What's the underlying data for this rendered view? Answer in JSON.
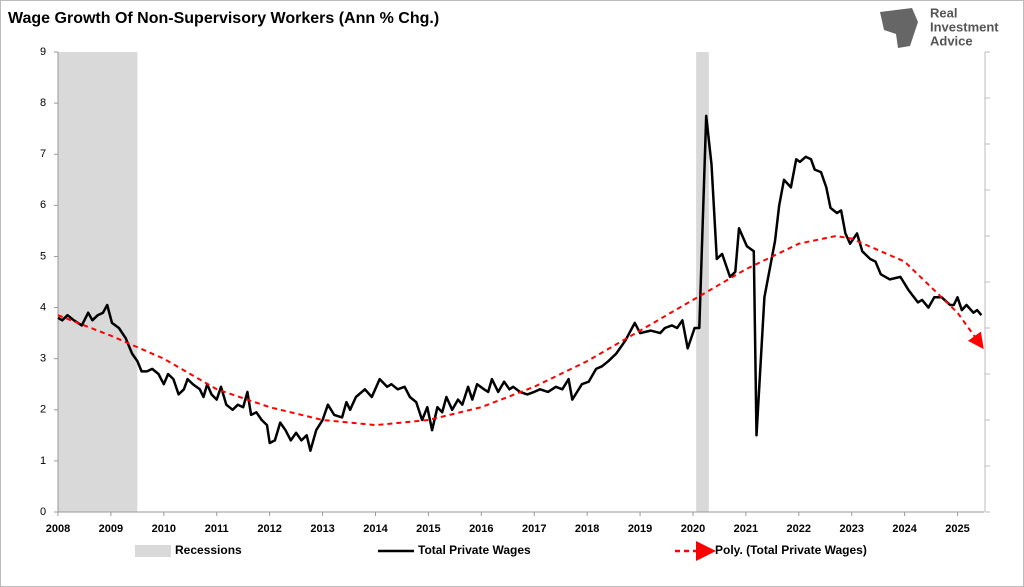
{
  "chart_data": {
    "type": "line",
    "title": "Wage Growth Of Non-Supervisory Workers (Ann % Chg.)",
    "logo": {
      "line1": "Real",
      "line2": "Investment",
      "line3": "Advice"
    },
    "xlim": [
      2008,
      2025.5
    ],
    "xticks": [
      2008,
      2009,
      2010,
      2011,
      2012,
      2013,
      2014,
      2015,
      2016,
      2017,
      2018,
      2019,
      2020,
      2021,
      2022,
      2023,
      2024,
      2025
    ],
    "ylim": [
      0,
      9
    ],
    "yticks": [
      0,
      1,
      2,
      3,
      4,
      5,
      6,
      7,
      8,
      9
    ],
    "series": [
      {
        "name": "Recessions",
        "kind": "band",
        "color": "#d9d9d9",
        "ranges": [
          [
            2008.0,
            2009.5
          ],
          [
            2020.06,
            2020.3
          ]
        ]
      },
      {
        "name": "Total Private Wages",
        "kind": "line",
        "color": "#000000",
        "x": [
          2008.0,
          2008.08,
          2008.18,
          2008.3,
          2008.45,
          2008.57,
          2008.65,
          2008.75,
          2008.85,
          2008.93,
          2009.02,
          2009.15,
          2009.28,
          2009.4,
          2009.5,
          2009.58,
          2009.68,
          2009.78,
          2009.9,
          2010.0,
          2010.08,
          2010.18,
          2010.28,
          2010.38,
          2010.45,
          2010.55,
          2010.68,
          2010.75,
          2010.82,
          2010.9,
          2011.0,
          2011.08,
          2011.18,
          2011.3,
          2011.4,
          2011.5,
          2011.58,
          2011.65,
          2011.75,
          2011.85,
          2011.95,
          2012.0,
          2012.1,
          2012.2,
          2012.3,
          2012.4,
          2012.5,
          2012.6,
          2012.7,
          2012.77,
          2012.88,
          2013.0,
          2013.1,
          2013.22,
          2013.37,
          2013.45,
          2013.52,
          2013.63,
          2013.8,
          2013.93,
          2014.08,
          2014.22,
          2014.3,
          2014.42,
          2014.55,
          2014.65,
          2014.77,
          2014.88,
          2014.98,
          2015.07,
          2015.17,
          2015.26,
          2015.34,
          2015.45,
          2015.56,
          2015.64,
          2015.75,
          2015.83,
          2015.92,
          2016.05,
          2016.13,
          2016.2,
          2016.32,
          2016.43,
          2016.53,
          2016.6,
          2016.73,
          2016.87,
          2017.0,
          2017.11,
          2017.26,
          2017.41,
          2017.53,
          2017.65,
          2017.72,
          2017.9,
          2018.03,
          2018.17,
          2018.28,
          2018.4,
          2018.55,
          2018.72,
          2018.9,
          2019.0,
          2019.2,
          2019.38,
          2019.47,
          2019.6,
          2019.7,
          2019.8,
          2019.9,
          2020.03,
          2020.12,
          2020.25,
          2020.35,
          2020.45,
          2020.55,
          2020.7,
          2020.8,
          2020.87,
          2021.02,
          2021.15,
          2021.2,
          2021.35,
          2021.55,
          2021.63,
          2021.72,
          2021.85,
          2021.95,
          2022.02,
          2022.13,
          2022.23,
          2022.3,
          2022.42,
          2022.52,
          2022.6,
          2022.72,
          2022.8,
          2022.88,
          2022.97,
          2023.1,
          2023.2,
          2023.35,
          2023.45,
          2023.55,
          2023.72,
          2023.92,
          2024.07,
          2024.25,
          2024.33,
          2024.45,
          2024.56,
          2024.7,
          2024.86,
          2024.93,
          2025.0,
          2025.08,
          2025.17,
          2025.3,
          2025.37,
          2025.45
        ],
        "values": [
          3.8,
          3.75,
          3.85,
          3.75,
          3.65,
          3.9,
          3.75,
          3.85,
          3.9,
          4.05,
          3.7,
          3.6,
          3.4,
          3.1,
          2.95,
          2.75,
          2.75,
          2.8,
          2.7,
          2.5,
          2.7,
          2.6,
          2.3,
          2.4,
          2.6,
          2.5,
          2.4,
          2.25,
          2.5,
          2.3,
          2.2,
          2.45,
          2.1,
          2.0,
          2.1,
          2.05,
          2.35,
          1.9,
          1.95,
          1.8,
          1.7,
          1.35,
          1.4,
          1.75,
          1.6,
          1.4,
          1.55,
          1.4,
          1.5,
          1.2,
          1.6,
          1.8,
          2.1,
          1.9,
          1.85,
          2.15,
          2.0,
          2.25,
          2.4,
          2.25,
          2.6,
          2.45,
          2.5,
          2.4,
          2.45,
          2.25,
          2.15,
          1.8,
          2.05,
          1.6,
          2.05,
          1.95,
          2.25,
          2.0,
          2.2,
          2.1,
          2.45,
          2.2,
          2.5,
          2.4,
          2.35,
          2.6,
          2.35,
          2.55,
          2.4,
          2.45,
          2.35,
          2.3,
          2.35,
          2.4,
          2.35,
          2.45,
          2.4,
          2.6,
          2.2,
          2.5,
          2.55,
          2.8,
          2.85,
          2.95,
          3.1,
          3.35,
          3.7,
          3.5,
          3.55,
          3.5,
          3.6,
          3.65,
          3.6,
          3.75,
          3.2,
          3.6,
          3.6,
          7.75,
          6.8,
          4.95,
          5.05,
          4.6,
          4.7,
          5.55,
          5.2,
          5.1,
          1.5,
          4.2,
          5.3,
          6.0,
          6.5,
          6.35,
          6.9,
          6.85,
          6.95,
          6.9,
          6.7,
          6.65,
          6.35,
          5.95,
          5.85,
          5.9,
          5.45,
          5.25,
          5.45,
          5.1,
          4.95,
          4.9,
          4.65,
          4.55,
          4.6,
          4.35,
          4.1,
          4.15,
          4.0,
          4.2,
          4.2,
          4.05,
          4.05,
          4.2,
          3.95,
          4.05,
          3.9,
          3.95,
          3.85
        ]
      },
      {
        "name": "Poly. (Total Private Wages)",
        "kind": "line",
        "color": "#ff0000",
        "dashed": true,
        "arrow": true,
        "x": [
          2008,
          2009,
          2010,
          2011,
          2012,
          2013,
          2014,
          2015,
          2016,
          2017,
          2018,
          2019,
          2020,
          2021,
          2022,
          2022.7,
          2023,
          2024,
          2025,
          2025.45
        ],
        "values": [
          3.85,
          3.45,
          3.0,
          2.4,
          2.05,
          1.8,
          1.7,
          1.8,
          2.05,
          2.45,
          2.95,
          3.55,
          4.15,
          4.75,
          5.25,
          5.4,
          5.35,
          4.9,
          3.9,
          3.25
        ]
      }
    ]
  }
}
